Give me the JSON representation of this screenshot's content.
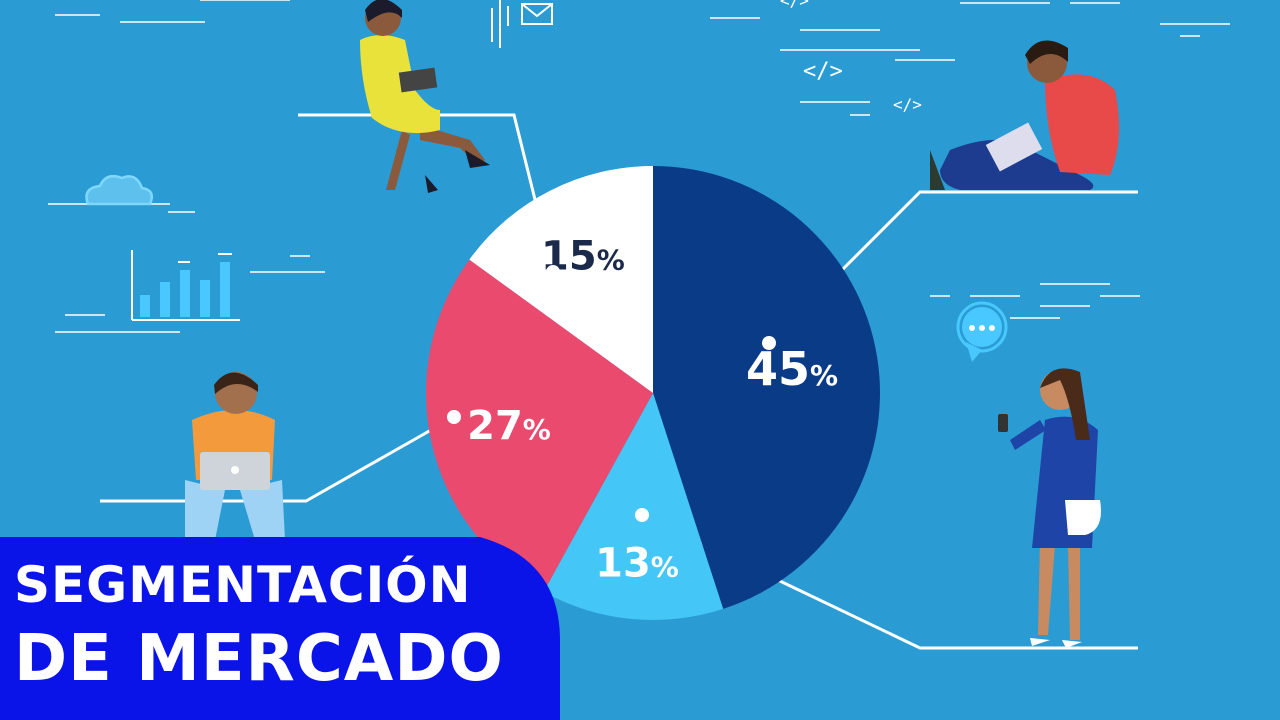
{
  "title": {
    "line1": "SEGMENTACIÓN",
    "line2": "DE MERCADO"
  },
  "colors": {
    "background": "#2b9bd3",
    "banner": "#0b14e8",
    "navy": "#0a3b87",
    "light_blue": "#44c6f7",
    "red": "#e94a6d",
    "white": "#ffffff"
  },
  "chart_data": {
    "type": "pie",
    "slices": [
      {
        "value": 45,
        "label": "45%",
        "color": "#0a3b87"
      },
      {
        "value": 13,
        "label": "13%",
        "color": "#44c6f7"
      },
      {
        "value": 27,
        "label": "27%",
        "color": "#e94a6d"
      },
      {
        "value": 15,
        "label": "15%",
        "color": "#ffffff"
      }
    ]
  },
  "icons": [
    "cloud-icon",
    "bar-chart-icon",
    "envelope-icon",
    "code-icon",
    "chat-bubble-icon",
    "laptop-icon",
    "smartphone-icon"
  ]
}
